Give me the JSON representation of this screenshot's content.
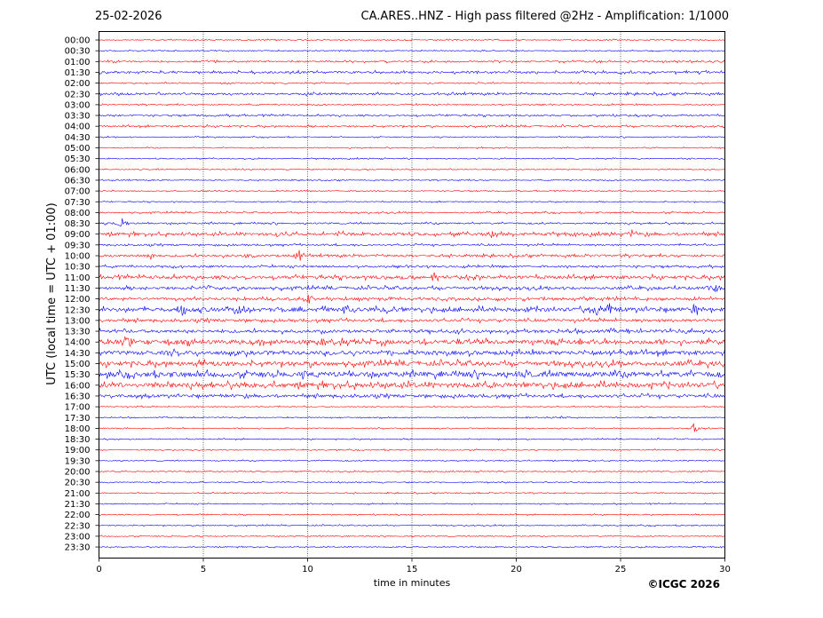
{
  "header": {
    "date": "25-02-2026",
    "title": "CA.ARES..HNZ - High pass filtered @2Hz - Amplification: 1/1000"
  },
  "copyright": "©ICGC 2026",
  "chart_data": {
    "type": "line",
    "title": "CA.ARES..HNZ - High pass filtered @2Hz - Amplification: 1/1000",
    "xlabel": "time in minutes",
    "ylabel": "UTC (local time = UTC + 01:00)",
    "xlim": [
      0,
      30
    ],
    "x_ticks": [
      0,
      5,
      10,
      15,
      20,
      25,
      30
    ],
    "vertical_grid": [
      5,
      10,
      15,
      20,
      25
    ],
    "grid": true,
    "colors": {
      "even_row": "#ff0000",
      "odd_row": "#0000ff"
    },
    "row_labels": [
      "00:00",
      "00:30",
      "01:00",
      "01:30",
      "02:00",
      "02:30",
      "03:00",
      "03:30",
      "04:00",
      "04:30",
      "05:00",
      "05:30",
      "06:00",
      "06:30",
      "07:00",
      "07:30",
      "08:00",
      "08:30",
      "09:00",
      "09:30",
      "10:00",
      "10:30",
      "11:00",
      "11:30",
      "12:00",
      "12:30",
      "13:00",
      "13:30",
      "14:00",
      "14:30",
      "15:00",
      "15:30",
      "16:00",
      "16:30",
      "17:00",
      "17:30",
      "18:00",
      "18:30",
      "19:00",
      "19:30",
      "20:00",
      "20:30",
      "21:00",
      "21:30",
      "22:00",
      "22:30",
      "23:00",
      "23:30"
    ],
    "noise_level": [
      0.5,
      0.5,
      0.8,
      1.0,
      0.6,
      1.0,
      0.6,
      0.8,
      0.8,
      0.5,
      0.5,
      0.5,
      0.5,
      0.5,
      0.5,
      0.5,
      0.7,
      0.8,
      1.4,
      0.8,
      1.1,
      1.0,
      1.6,
      1.4,
      1.2,
      2.0,
      1.3,
      1.5,
      2.2,
      2.0,
      2.2,
      2.5,
      2.4,
      1.4,
      0.5,
      0.5,
      0.5,
      0.5,
      0.5,
      0.5,
      0.5,
      0.5,
      0.5,
      0.5,
      0.5,
      0.5,
      0.5,
      0.5
    ],
    "events": [
      {
        "row": 17,
        "minute": 1.1,
        "amplitude": 8
      },
      {
        "row": 18,
        "minute": 8.5,
        "amplitude": 3
      },
      {
        "row": 18,
        "minute": 11.5,
        "amplitude": 3
      },
      {
        "row": 18,
        "minute": 18.8,
        "amplitude": 4
      },
      {
        "row": 18,
        "minute": 25.5,
        "amplitude": 6
      },
      {
        "row": 20,
        "minute": 2.5,
        "amplitude": 5
      },
      {
        "row": 20,
        "minute": 7.0,
        "amplitude": 3
      },
      {
        "row": 20,
        "minute": 9.6,
        "amplitude": 10
      },
      {
        "row": 22,
        "minute": 14.5,
        "amplitude": 4
      },
      {
        "row": 22,
        "minute": 16.1,
        "amplitude": 8
      },
      {
        "row": 22,
        "minute": 18.2,
        "amplitude": 5
      },
      {
        "row": 23,
        "minute": 5.2,
        "amplitude": 5
      },
      {
        "row": 23,
        "minute": 27.0,
        "amplitude": 3
      },
      {
        "row": 23,
        "minute": 29.5,
        "amplitude": 6
      },
      {
        "row": 24,
        "minute": 10.0,
        "amplitude": 8
      },
      {
        "row": 24,
        "minute": 23.3,
        "amplitude": 5
      },
      {
        "row": 25,
        "minute": 4.0,
        "amplitude": 10
      },
      {
        "row": 25,
        "minute": 6.8,
        "amplitude": 10
      },
      {
        "row": 25,
        "minute": 11.9,
        "amplitude": 7
      },
      {
        "row": 25,
        "minute": 13.8,
        "amplitude": 8
      },
      {
        "row": 25,
        "minute": 20.6,
        "amplitude": 4
      },
      {
        "row": 25,
        "minute": 23.8,
        "amplitude": 12
      },
      {
        "row": 25,
        "minute": 24.4,
        "amplitude": 10
      },
      {
        "row": 25,
        "minute": 28.5,
        "amplitude": 7
      },
      {
        "row": 26,
        "minute": 0.2,
        "amplitude": 3
      },
      {
        "row": 28,
        "minute": 1.4,
        "amplitude": 10
      },
      {
        "row": 28,
        "minute": 5.0,
        "amplitude": 3
      },
      {
        "row": 28,
        "minute": 23.0,
        "amplitude": 4
      },
      {
        "row": 29,
        "minute": 25.5,
        "amplitude": 3
      },
      {
        "row": 30,
        "minute": 5.5,
        "amplitude": 3
      },
      {
        "row": 30,
        "minute": 26.3,
        "amplitude": 3
      },
      {
        "row": 31,
        "minute": 10.0,
        "amplitude": 4
      },
      {
        "row": 31,
        "minute": 20.5,
        "amplitude": 4
      },
      {
        "row": 32,
        "minute": 19.5,
        "amplitude": 3
      },
      {
        "row": 35,
        "minute": 22.2,
        "amplitude": 3
      },
      {
        "row": 36,
        "minute": 28.5,
        "amplitude": 7
      }
    ]
  }
}
